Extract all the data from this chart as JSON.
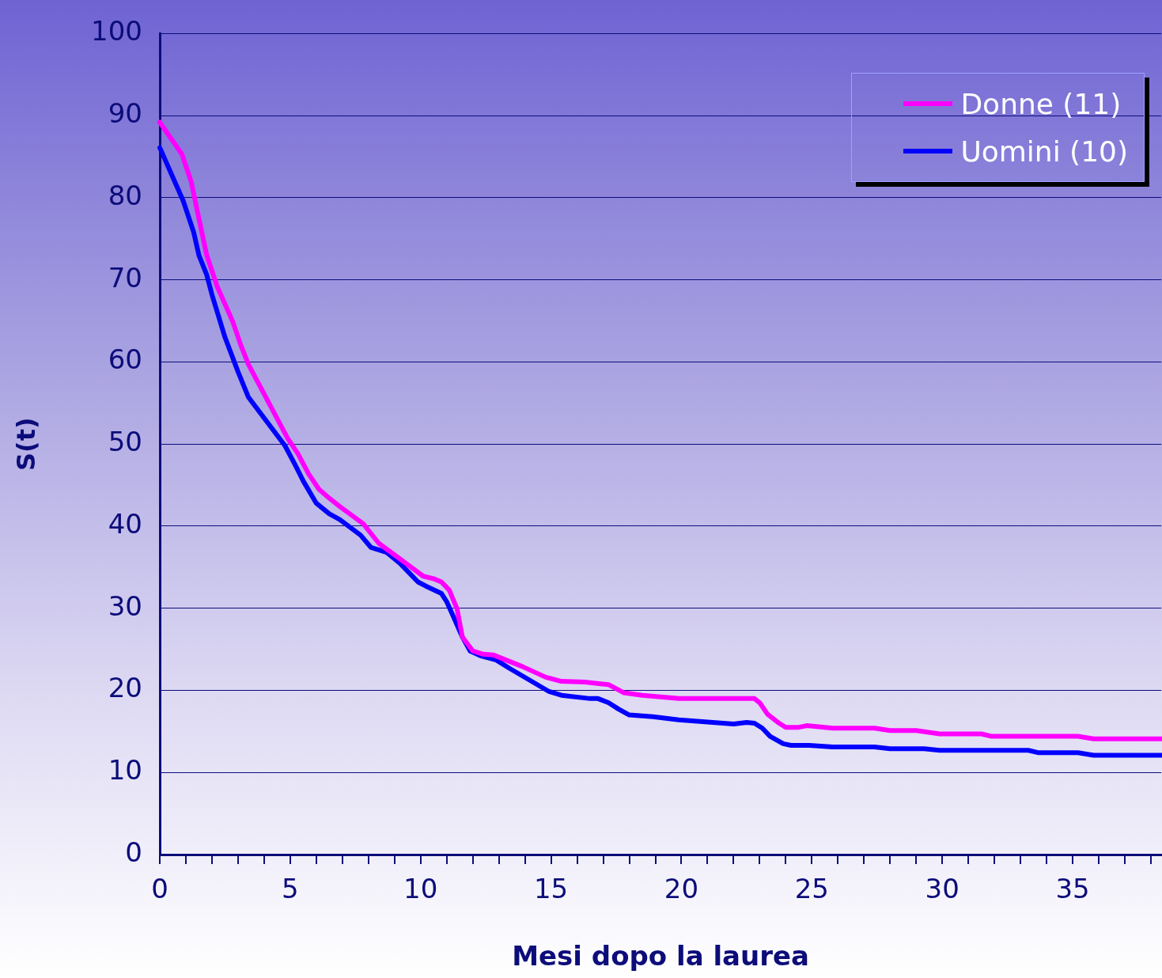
{
  "chart_data": {
    "type": "line",
    "xlabel": "Mesi dopo la laurea",
    "ylabel": "S(t)",
    "xlim": [
      0,
      38.4
    ],
    "ylim": [
      0,
      100
    ],
    "xticks": [
      0,
      {
        "value": 1,
        "label": null
      },
      {
        "value": 2,
        "label": null
      },
      {
        "value": 3,
        "label": null
      },
      {
        "value": 4,
        "label": null
      },
      5,
      {
        "value": 6,
        "label": null
      },
      {
        "value": 7,
        "label": null
      },
      {
        "value": 8,
        "label": null
      },
      {
        "value": 9,
        "label": null
      },
      10,
      {
        "value": 11,
        "label": null
      },
      {
        "value": 12,
        "label": null
      },
      {
        "value": 13,
        "label": null
      },
      {
        "value": 14,
        "label": null
      },
      15,
      {
        "value": 16,
        "label": null
      },
      {
        "value": 17,
        "label": null
      },
      {
        "value": 18,
        "label": null
      },
      {
        "value": 19,
        "label": null
      },
      20,
      {
        "value": 21,
        "label": null
      },
      {
        "value": 22,
        "label": null
      },
      {
        "value": 23,
        "label": null
      },
      {
        "value": 24,
        "label": null
      },
      25,
      {
        "value": 26,
        "label": null
      },
      {
        "value": 27,
        "label": null
      },
      {
        "value": 28,
        "label": null
      },
      {
        "value": 29,
        "label": null
      },
      30,
      {
        "value": 31,
        "label": null
      },
      {
        "value": 32,
        "label": null
      },
      {
        "value": 33,
        "label": null
      },
      {
        "value": 34,
        "label": null
      },
      35,
      {
        "value": 36,
        "label": null
      },
      {
        "value": 37,
        "label": null
      },
      {
        "value": 38,
        "label": null
      }
    ],
    "yticks": [
      0,
      10,
      20,
      30,
      40,
      50,
      60,
      70,
      80,
      90,
      100
    ],
    "grid": "y",
    "legend": "top right",
    "marker": "none",
    "line_style": "solid",
    "series": [
      {
        "name": "Donne (11)",
        "color": "#ff00ff",
        "x": [
          0,
          0.85,
          1.2,
          1.45,
          1.8,
          2.2,
          2.8,
          3.1,
          3.4,
          4.9,
          5.3,
          5.7,
          6.1,
          6.5,
          6.9,
          7.8,
          8.4,
          9.0,
          9.6,
          10.1,
          10.5,
          10.8,
          11.1,
          11.4,
          11.6,
          12.0,
          12.4,
          12.8,
          13.9,
          14.8,
          15.4,
          16.3,
          17.2,
          17.8,
          18.5,
          19.9,
          22.8,
          23.0,
          23.3,
          23.7,
          24.0,
          24.5,
          24.8,
          25.8,
          27.4,
          28.0,
          29.0,
          29.9,
          31.5,
          31.9,
          35.2,
          35.8,
          38.4
        ],
        "values": [
          89.2,
          85.3,
          82,
          78.2,
          73,
          69.2,
          64.9,
          62.1,
          59.7,
          50.7,
          48.8,
          46.4,
          44.5,
          43.4,
          42.4,
          40.3,
          37.9,
          36.5,
          35.1,
          33.9,
          33.6,
          33.2,
          32.2,
          29.9,
          26.5,
          24.8,
          24.4,
          24.3,
          22.9,
          21.6,
          21.1,
          21,
          20.7,
          19.7,
          19.4,
          19,
          19,
          18.5,
          17.1,
          16.1,
          15.5,
          15.5,
          15.7,
          15.4,
          15.4,
          15.1,
          15.1,
          14.7,
          14.7,
          14.4,
          14.4,
          14.1,
          14.1
        ]
      },
      {
        "name": "Uomini (10)",
        "color": "#0000ff",
        "x": [
          0,
          0.9,
          1.3,
          1.5,
          1.8,
          2.0,
          2.5,
          3.0,
          3.4,
          4.8,
          5.2,
          5.5,
          6.0,
          6.5,
          6.9,
          7.7,
          8.1,
          8.7,
          9.2,
          9.9,
          10.2,
          10.8,
          11.0,
          11.2,
          11.6,
          11.9,
          12.3,
          12.9,
          13.4,
          14.9,
          15.4,
          16.5,
          16.8,
          17.2,
          17.6,
          18.0,
          18.9,
          19.9,
          22.0,
          22.5,
          22.8,
          23.1,
          23.4,
          23.9,
          24.2,
          24.9,
          25.8,
          27.4,
          28.0,
          29.3,
          29.9,
          33.3,
          33.7,
          35.2,
          35.8,
          38.4
        ],
        "values": [
          86.1,
          79.6,
          75.8,
          73,
          70.6,
          68.2,
          63,
          58.8,
          55.7,
          49.8,
          47.4,
          45.5,
          42.8,
          41.5,
          40.8,
          38.9,
          37.4,
          36.8,
          35.5,
          33.2,
          32.7,
          31.8,
          30.8,
          29.4,
          26.5,
          24.8,
          24.2,
          23.7,
          22.7,
          19.9,
          19.4,
          19,
          19,
          18.5,
          17.7,
          17,
          16.8,
          16.4,
          15.9,
          16.1,
          16,
          15.4,
          14.4,
          13.5,
          13.3,
          13.3,
          13.1,
          13.1,
          12.9,
          12.9,
          12.7,
          12.7,
          12.4,
          12.4,
          12.1,
          12.1
        ]
      }
    ]
  }
}
